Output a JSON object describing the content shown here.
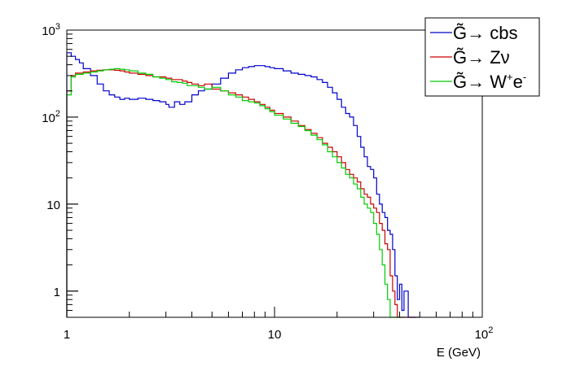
{
  "chart_data": {
    "type": "line",
    "title": "",
    "xlabel": "E (GeV)",
    "ylabel": "",
    "xscale": "log",
    "yscale": "log",
    "xlim": [
      1,
      100
    ],
    "ylim": [
      0.5,
      1000
    ],
    "grid": false,
    "legend_position": "top-right",
    "x_tick_labels": [
      {
        "value": 1,
        "base": "1",
        "exp": ""
      },
      {
        "value": 10,
        "base": "10",
        "exp": ""
      },
      {
        "value": 100,
        "base": "10",
        "exp": "2"
      }
    ],
    "y_tick_labels": [
      {
        "value": 1,
        "base": "1",
        "exp": ""
      },
      {
        "value": 10,
        "base": "10",
        "exp": ""
      },
      {
        "value": 100,
        "base": "10",
        "exp": "2"
      },
      {
        "value": 1000,
        "base": "10",
        "exp": "3"
      }
    ],
    "series": [
      {
        "name_main": "G̃→ cbs",
        "name_sup": "",
        "name_sup2": "",
        "color": "#0000cc",
        "x": [
          1.0,
          1.05,
          1.1,
          1.15,
          1.2,
          1.3,
          1.4,
          1.5,
          1.6,
          1.7,
          1.8,
          1.9,
          2.0,
          2.2,
          2.4,
          2.6,
          2.8,
          3.0,
          3.1,
          3.3,
          3.5,
          3.7,
          4.0,
          4.3,
          4.6,
          5.0,
          5.5,
          6.0,
          6.5,
          7.0,
          7.5,
          8.0,
          8.5,
          9.0,
          9.5,
          10,
          11,
          12,
          13,
          14,
          15,
          16,
          17,
          18,
          19,
          20,
          21,
          22,
          23,
          24,
          25,
          26,
          27,
          28,
          29,
          30,
          31,
          32,
          33,
          34,
          35,
          36,
          37,
          38,
          39,
          40,
          41,
          42,
          44,
          46,
          48
        ],
        "y": [
          550,
          500,
          460,
          420,
          360,
          300,
          240,
          200,
          180,
          170,
          160,
          165,
          160,
          165,
          160,
          155,
          150,
          140,
          130,
          150,
          140,
          150,
          180,
          200,
          210,
          240,
          280,
          320,
          350,
          370,
          380,
          390,
          390,
          380,
          370,
          360,
          340,
          320,
          310,
          300,
          290,
          270,
          250,
          220,
          190,
          160,
          130,
          110,
          100,
          80,
          60,
          45,
          35,
          27,
          25,
          20,
          13,
          10,
          8,
          7,
          5,
          4.5,
          3,
          1.5,
          0.8,
          1.2,
          0.6,
          1,
          0.5,
          0.5,
          0.5
        ]
      },
      {
        "name_main": "G̃→ Zν",
        "name_sup": "",
        "name_sup2": "",
        "color": "#cc0000",
        "x": [
          1.0,
          1.05,
          1.1,
          1.2,
          1.3,
          1.4,
          1.5,
          1.6,
          1.7,
          1.8,
          1.9,
          2.0,
          2.2,
          2.4,
          2.6,
          2.8,
          3.0,
          3.2,
          3.4,
          3.6,
          3.8,
          4.0,
          4.3,
          4.6,
          5.0,
          5.5,
          6.0,
          6.5,
          7.0,
          7.5,
          8.0,
          8.5,
          9.0,
          9.5,
          10,
          11,
          12,
          13,
          14,
          15,
          16,
          17,
          18,
          19,
          20,
          21,
          22,
          23,
          24,
          25,
          26,
          27,
          28,
          29,
          30,
          31,
          32,
          33,
          34,
          35,
          36,
          37,
          38,
          39,
          40,
          42,
          44,
          46
        ],
        "y": [
          200,
          300,
          320,
          330,
          340,
          345,
          350,
          350,
          345,
          340,
          330,
          320,
          310,
          300,
          290,
          290,
          280,
          270,
          270,
          260,
          250,
          240,
          230,
          240,
          210,
          200,
          190,
          180,
          170,
          160,
          150,
          140,
          130,
          120,
          110,
          100,
          90,
          80,
          72,
          65,
          58,
          50,
          45,
          40,
          35,
          30,
          25,
          22,
          20,
          18,
          15,
          13,
          12,
          10,
          9,
          8,
          6,
          5,
          3.5,
          3,
          1.5,
          1,
          0.7,
          0.5,
          0.5,
          0.5,
          0.5,
          0.5
        ]
      },
      {
        "name_main": "G̃→ W",
        "name_sup": "+",
        "name_sup2": "-",
        "name_mid": "e",
        "color": "#00cc00",
        "x": [
          1.0,
          1.05,
          1.1,
          1.2,
          1.3,
          1.4,
          1.5,
          1.6,
          1.7,
          1.8,
          1.9,
          2.0,
          2.2,
          2.4,
          2.6,
          2.8,
          3.0,
          3.2,
          3.4,
          3.6,
          3.8,
          4.0,
          4.3,
          4.6,
          5.0,
          5.5,
          6.0,
          6.5,
          7.0,
          7.5,
          8.0,
          8.5,
          9.0,
          9.5,
          10,
          11,
          12,
          13,
          14,
          15,
          16,
          17,
          18,
          19,
          20,
          21,
          22,
          23,
          24,
          25,
          26,
          27,
          28,
          29,
          30,
          31,
          32,
          33,
          34,
          35,
          36,
          37,
          38,
          39,
          40
        ],
        "y": [
          180,
          290,
          310,
          320,
          330,
          340,
          350,
          355,
          360,
          355,
          350,
          340,
          320,
          310,
          290,
          280,
          270,
          255,
          250,
          245,
          230,
          230,
          220,
          210,
          220,
          200,
          180,
          170,
          155,
          150,
          145,
          135,
          125,
          115,
          105,
          95,
          85,
          78,
          70,
          62,
          55,
          48,
          40,
          35,
          30,
          26,
          22,
          20,
          17,
          15,
          12,
          10,
          9,
          8,
          6,
          4.5,
          3,
          2,
          1.2,
          0.8,
          0.5,
          0.5,
          0.5,
          0.5,
          0.5
        ]
      }
    ]
  }
}
